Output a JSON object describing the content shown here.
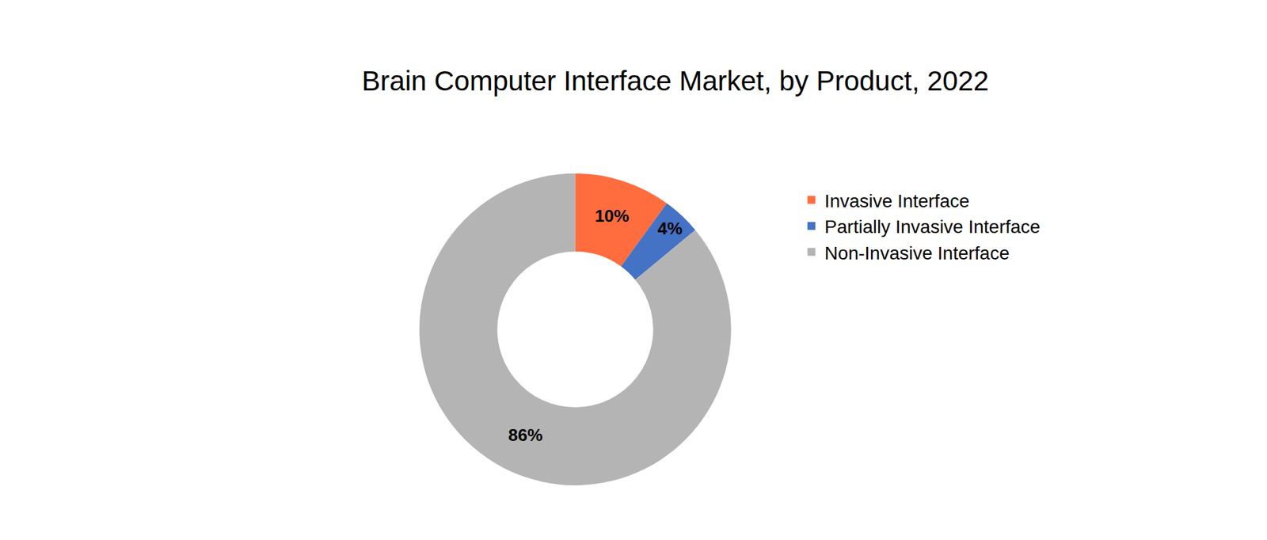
{
  "chart_data": {
    "type": "pie",
    "title": "Brain Computer Interface Market, by Product, 2022",
    "categories": [
      "Invasive Interface",
      "Partially Invasive Interface",
      "Non-Invasive Interface"
    ],
    "values": [
      10,
      4,
      86
    ],
    "value_labels": [
      "10%",
      "4%",
      "86%"
    ],
    "colors": [
      "#FF6D3F",
      "#4472C4",
      "#B4B4B4"
    ],
    "data_labels": true,
    "legend": "right"
  }
}
